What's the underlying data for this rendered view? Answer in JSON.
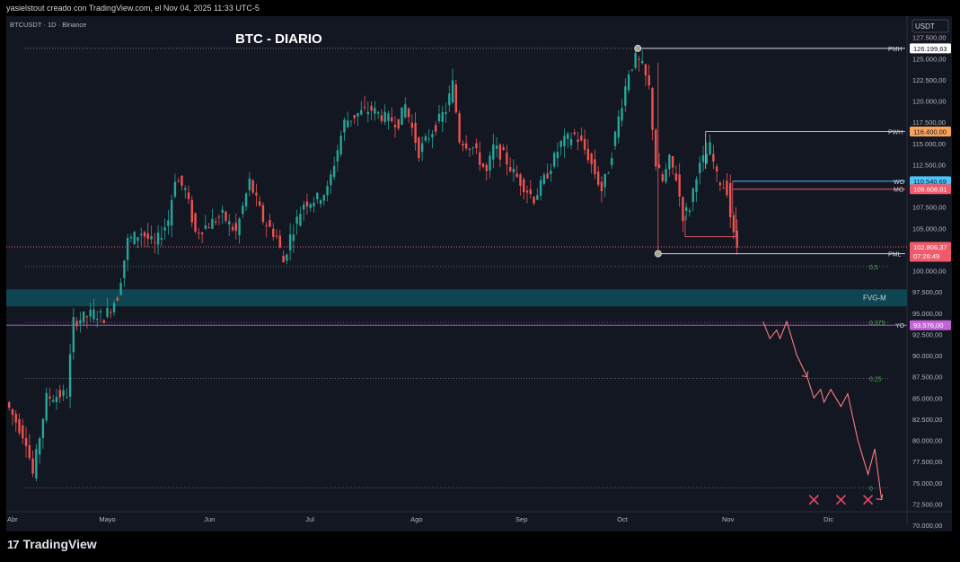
{
  "header": {
    "text": "yasielstout creado con TradingView.com, el Nov 04, 2025 11:33 UTC-5"
  },
  "footer": {
    "logo_text": "TradingView",
    "logo_mark": "17"
  },
  "chart_data": {
    "type": "candlestick",
    "symbol_label": "BTCUSDT · 1D · Binance",
    "title": "BTC - DIARIO",
    "currency_label": "USDT",
    "ylim": [
      70000,
      130000
    ],
    "y_ticks": [
      {
        "v": 127500,
        "t": "127.500,00"
      },
      {
        "v": 125000,
        "t": "125.000,00"
      },
      {
        "v": 122500,
        "t": "122.500,00"
      },
      {
        "v": 120000,
        "t": "120.000,00"
      },
      {
        "v": 117500,
        "t": "117.500,00"
      },
      {
        "v": 115000,
        "t": "115.000,00"
      },
      {
        "v": 112500,
        "t": "112.500,00"
      },
      {
        "v": 107500,
        "t": "107.500,00"
      },
      {
        "v": 105000,
        "t": "105.000,00"
      },
      {
        "v": 100000,
        "t": "100.000,00"
      },
      {
        "v": 97500,
        "t": "97.500,00"
      },
      {
        "v": 95000,
        "t": "95.000,00"
      },
      {
        "v": 92500,
        "t": "92.500,00"
      },
      {
        "v": 90000,
        "t": "90.000,00"
      },
      {
        "v": 87500,
        "t": "87.500,00"
      },
      {
        "v": 85000,
        "t": "85.000,00"
      },
      {
        "v": 82500,
        "t": "82.500,00"
      },
      {
        "v": 80000,
        "t": "80.000,00"
      },
      {
        "v": 77500,
        "t": "77.500,00"
      },
      {
        "v": 75000,
        "t": "75.000,00"
      },
      {
        "v": 72500,
        "t": "72.500,00"
      },
      {
        "v": 70000,
        "t": "70.000,00"
      }
    ],
    "x_ticks": [
      {
        "d": 0,
        "t": "Abr"
      },
      {
        "d": 29,
        "t": "Mayo"
      },
      {
        "d": 60,
        "t": "Jun"
      },
      {
        "d": 90,
        "t": "Jul"
      },
      {
        "d": 121,
        "t": "Ago"
      },
      {
        "d": 152,
        "t": "Sep"
      },
      {
        "d": 182,
        "t": "Oct"
      },
      {
        "d": 213,
        "t": "Nov"
      },
      {
        "d": 243,
        "t": "Dic"
      }
    ],
    "price_path": [
      [
        0,
        84500
      ],
      [
        6,
        80000
      ],
      [
        8,
        76000
      ],
      [
        12,
        85000
      ],
      [
        18,
        85500
      ],
      [
        20,
        94000
      ],
      [
        26,
        95000
      ],
      [
        29,
        94500
      ],
      [
        33,
        97000
      ],
      [
        36,
        103500
      ],
      [
        40,
        104500
      ],
      [
        44,
        103000
      ],
      [
        48,
        106000
      ],
      [
        50,
        111000
      ],
      [
        53,
        109500
      ],
      [
        56,
        104500
      ],
      [
        60,
        105500
      ],
      [
        64,
        106500
      ],
      [
        68,
        104500
      ],
      [
        72,
        110500
      ],
      [
        76,
        106000
      ],
      [
        80,
        104000
      ],
      [
        82,
        101000
      ],
      [
        84,
        104000
      ],
      [
        88,
        108000
      ],
      [
        92,
        108500
      ],
      [
        95,
        109500
      ],
      [
        100,
        117500
      ],
      [
        104,
        118500
      ],
      [
        108,
        119000
      ],
      [
        112,
        118000
      ],
      [
        116,
        117500
      ],
      [
        118,
        119500
      ],
      [
        122,
        114000
      ],
      [
        126,
        116500
      ],
      [
        130,
        119000
      ],
      [
        132,
        122000
      ],
      [
        134,
        115500
      ],
      [
        138,
        114500
      ],
      [
        142,
        111500
      ],
      [
        144,
        114500
      ],
      [
        147,
        113500
      ],
      [
        150,
        111500
      ],
      [
        152,
        110500
      ],
      [
        156,
        108500
      ],
      [
        160,
        111500
      ],
      [
        164,
        115000
      ],
      [
        168,
        116000
      ],
      [
        170,
        115000
      ],
      [
        172,
        113500
      ],
      [
        176,
        109500
      ],
      [
        178,
        112000
      ],
      [
        181,
        118000
      ],
      [
        184,
        123500
      ],
      [
        186,
        125000
      ],
      [
        188,
        124000
      ],
      [
        190,
        121500
      ],
      [
        192,
        112500
      ],
      [
        194,
        110500
      ],
      [
        196,
        113000
      ],
      [
        198,
        111000
      ],
      [
        200,
        106500
      ],
      [
        202,
        107500
      ],
      [
        204,
        111500
      ],
      [
        206,
        113000
      ],
      [
        208,
        114500
      ],
      [
        210,
        111000
      ],
      [
        212,
        110000
      ],
      [
        213,
        109600
      ],
      [
        214,
        106500
      ],
      [
        215,
        104000
      ],
      [
        216,
        102806
      ]
    ],
    "projection_path": [
      [
        223,
        94000
      ],
      [
        225,
        92000
      ],
      [
        227,
        93000
      ],
      [
        228,
        92000
      ],
      [
        230,
        94000
      ],
      [
        233,
        90000
      ],
      [
        236,
        87500
      ],
      [
        238,
        85000
      ],
      [
        240,
        86000
      ],
      [
        241,
        84500
      ],
      [
        243,
        86000
      ],
      [
        246,
        84000
      ],
      [
        248,
        85500
      ],
      [
        251,
        80000
      ],
      [
        254,
        76000
      ],
      [
        256,
        79000
      ],
      [
        258,
        73000
      ]
    ],
    "x_marks": [
      {
        "d": 238,
        "v": 73000
      },
      {
        "d": 246,
        "v": 73000
      },
      {
        "d": 254,
        "v": 73000
      }
    ],
    "levels": [
      {
        "label": "PMH",
        "value": 126199.63,
        "tag": "126.199,63",
        "color": "#d1d4dc",
        "tag_bg": "#ffffff",
        "tag_fg": "#131722",
        "from": 186
      },
      {
        "label": "PWH",
        "value": 116400,
        "tag": "116.400,00",
        "color": "#f7a35c",
        "tag_bg": "#f7a35c",
        "tag_fg": "#131722",
        "from": 206
      },
      {
        "label": "WO",
        "value": 110540.69,
        "tag": "110.540,69",
        "color": "#4fc3f7",
        "tag_bg": "#4fc3f7",
        "tag_fg": "#131722",
        "from": 214
      },
      {
        "label": "MO",
        "value": 109608.01,
        "tag": "109.608,01",
        "color": "#f05b6b",
        "tag_bg": "#f05b6b",
        "tag_fg": "#ffffff",
        "from": 214
      },
      {
        "label": "PML",
        "value": 102000,
        "tag": "",
        "color": "#d1d4dc",
        "tag_bg": "",
        "tag_fg": "",
        "from": 192
      },
      {
        "label": "YO",
        "value": 93576,
        "tag": "93.576,00",
        "color": "#c264d6",
        "tag_bg": "#c264d6",
        "tag_fg": "#ffffff",
        "from": 0
      }
    ],
    "current_price": {
      "value": 102806.37,
      "tag": "102.806,37",
      "countdown": "07:26:49",
      "color": "#f05b6b"
    },
    "fib_levels": [
      {
        "label": "0,5",
        "value": 100500
      },
      {
        "label": "0,375",
        "value": 93900
      },
      {
        "label": "0,25",
        "value": 87300
      },
      {
        "label": "0",
        "value": 74400
      }
    ],
    "fvg": {
      "label": "FVG-M",
      "from": 95800,
      "to": 97800
    },
    "marks": {
      "pmh_dot_day": 186,
      "pml_dot_day": 192
    }
  }
}
